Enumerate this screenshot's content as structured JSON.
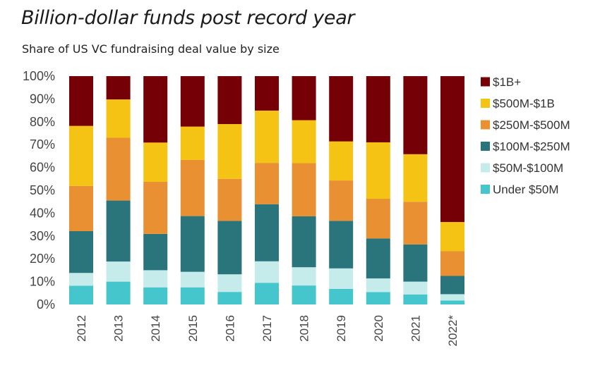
{
  "title": "Billion-dollar funds post record year",
  "subtitle": "Share of US VC fundraising deal value by size",
  "chart_data": {
    "type": "bar",
    "stacked": true,
    "percent_stacked": true,
    "title": "Billion-dollar funds post record year",
    "subtitle": "Share of US VC fundraising deal value by size",
    "xlabel": "",
    "ylabel": "",
    "ylim": [
      0,
      100
    ],
    "yticks": [
      "0%",
      "10%",
      "20%",
      "30%",
      "40%",
      "50%",
      "60%",
      "70%",
      "80%",
      "90%",
      "100%"
    ],
    "grid": false,
    "legend_position": "right",
    "categories": [
      "2012",
      "2013",
      "2014",
      "2015",
      "2016",
      "2017",
      "2018",
      "2019",
      "2020",
      "2021",
      "2022*"
    ],
    "series": [
      {
        "name": "Under $50M",
        "color": "#45c5cc",
        "values": [
          8.2,
          10.0,
          7.5,
          7.5,
          5.5,
          9.5,
          8.3,
          6.8,
          5.4,
          4.4,
          1.7
        ]
      },
      {
        "name": "$50M-$100M",
        "color": "#c6ebeb",
        "values": [
          5.6,
          8.8,
          7.5,
          6.8,
          7.7,
          9.4,
          8.0,
          9.0,
          6.0,
          5.6,
          2.8
        ]
      },
      {
        "name": "$100M-$250M",
        "color": "#2a747c",
        "values": [
          18.3,
          26.7,
          15.9,
          24.4,
          23.4,
          25.0,
          22.3,
          20.8,
          17.5,
          16.3,
          8.0
        ]
      },
      {
        "name": "$250M-$500M",
        "color": "#e99033",
        "values": [
          19.8,
          27.5,
          22.8,
          24.6,
          18.4,
          18.1,
          23.3,
          17.7,
          17.4,
          18.7,
          10.8
        ]
      },
      {
        "name": "$500M-$1B",
        "color": "#f5c314",
        "values": [
          26.3,
          16.8,
          17.2,
          14.6,
          24.0,
          22.9,
          18.8,
          17.1,
          24.7,
          20.8,
          12.8
        ]
      },
      {
        "name": "$1B+",
        "color": "#750006",
        "values": [
          21.8,
          10.2,
          29.1,
          22.1,
          21.0,
          15.1,
          19.3,
          28.6,
          29.0,
          34.2,
          63.9
        ]
      }
    ]
  }
}
